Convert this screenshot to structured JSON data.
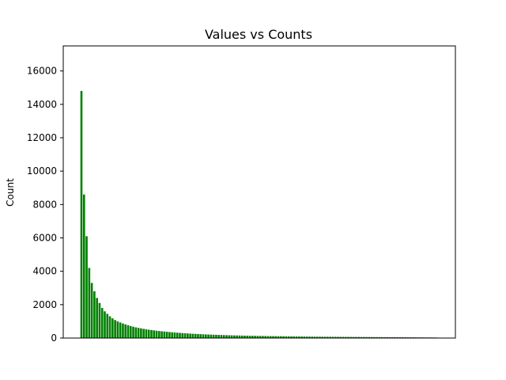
{
  "chart_data": {
    "type": "bar",
    "title": "Values vs Counts",
    "xlabel": "",
    "ylabel": "Count",
    "ylim": [
      0,
      17500
    ],
    "yticks": [
      0,
      2000,
      4000,
      6000,
      8000,
      10000,
      12000,
      14000,
      16000
    ],
    "xticks_visible": false,
    "grid": false,
    "bar_color": "#008000",
    "values": [
      14800,
      8600,
      6100,
      4200,
      3300,
      2800,
      2400,
      2100,
      1800,
      1600,
      1450,
      1300,
      1180,
      1080,
      1000,
      930,
      870,
      820,
      770,
      720,
      680,
      640,
      610,
      580,
      550,
      520,
      500,
      480,
      460,
      440,
      420,
      405,
      390,
      375,
      360,
      345,
      332,
      320,
      308,
      297,
      286,
      276,
      266,
      257,
      248,
      240,
      232,
      225,
      218,
      211,
      205,
      199,
      193,
      187,
      182,
      177,
      172,
      167,
      163,
      159,
      155,
      151,
      147,
      143,
      140,
      137,
      134,
      131,
      128,
      125,
      122,
      119,
      117,
      115,
      113,
      111,
      109,
      107,
      105,
      103,
      101,
      99,
      97,
      95,
      93,
      91,
      89,
      87,
      85,
      83,
      81,
      80,
      79,
      78,
      77,
      76,
      75,
      74,
      73,
      72,
      71,
      70,
      69,
      68,
      67,
      66,
      65,
      64,
      63,
      62,
      61,
      60,
      59,
      58,
      57,
      56,
      55,
      54,
      53,
      52,
      51,
      50,
      49,
      48,
      47,
      46,
      45,
      44,
      43,
      42,
      41,
      40,
      39,
      38,
      37,
      36,
      35,
      34
    ]
  }
}
